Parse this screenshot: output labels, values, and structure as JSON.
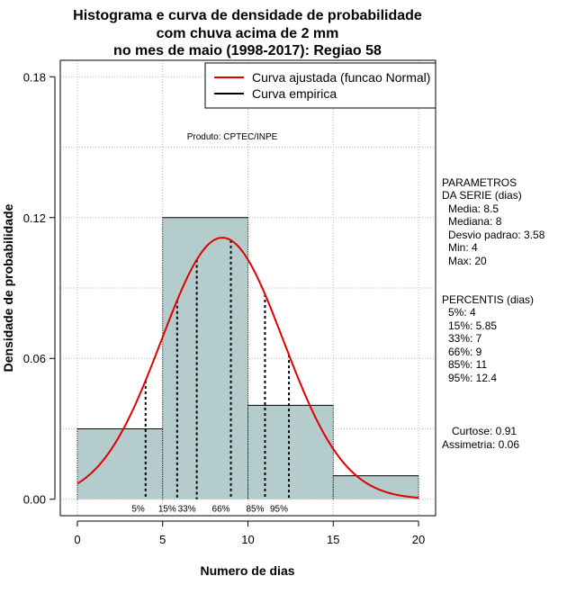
{
  "chart_data": {
    "type": "bar",
    "title_lines": [
      "Histograma e curva de densidade de probabilidade",
      "com chuva acima de 2 mm",
      "no mes de maio (1998-2017): Regiao 58"
    ],
    "xlabel": "Numero de dias",
    "ylabel": "Densidade de probabilidade",
    "xlim": [
      -1,
      21
    ],
    "ylim": [
      -0.007,
      0.187
    ],
    "x_ticks": [
      0,
      5,
      10,
      15,
      20
    ],
    "y_ticks": [
      0.0,
      0.06,
      0.12,
      0.18
    ],
    "y_tick_labels": [
      "0.00",
      "0.06",
      "0.12",
      "0.18"
    ],
    "grid": true,
    "bins": [
      {
        "from": 0,
        "to": 5,
        "density": 0.03
      },
      {
        "from": 5,
        "to": 10,
        "density": 0.12
      },
      {
        "from": 10,
        "to": 15,
        "density": 0.04
      },
      {
        "from": 15,
        "to": 20,
        "density": 0.01
      }
    ],
    "series": [
      {
        "name": "Curva ajustada (funcao Normal)",
        "color": "#e00000",
        "mean": 8.5,
        "sd": 3.58,
        "x_range": [
          0,
          20
        ]
      },
      {
        "name": "Curva empirica",
        "color": "#000000"
      }
    ],
    "percentiles": [
      {
        "label": "5%",
        "value": 4
      },
      {
        "label": "15%",
        "value": 5.85
      },
      {
        "label": "33%",
        "value": 7
      },
      {
        "label": "66%",
        "value": 9
      },
      {
        "label": "85%",
        "value": 11
      },
      {
        "label": "95%",
        "value": 12.4
      }
    ],
    "annotation": "Produto: CPTEC/INPE",
    "legend_position": "top-right",
    "parametros": {
      "heading": [
        "PARAMETROS",
        "DA SERIE (dias)"
      ],
      "lines": [
        "Media: 8.5",
        "Mediana: 8",
        "Desvio padrao: 3.58",
        "Min: 4",
        "Max: 20"
      ]
    },
    "percentis": {
      "heading": "PERCENTIS (dias)",
      "lines": [
        "5%: 4",
        "15%: 5.85",
        "33%: 7",
        "66%: 9",
        "85%: 11",
        "95%: 12.4"
      ]
    },
    "shape": {
      "lines": [
        "Curtose: 0.91",
        "Assimetria: 0.06"
      ]
    },
    "colors": {
      "bar_fill": "#b5cccc",
      "grid": "#b4b4b4"
    }
  }
}
